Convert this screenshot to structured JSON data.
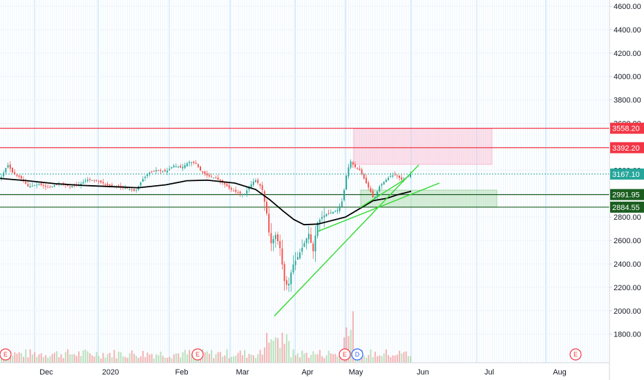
{
  "chart_data": {
    "type": "candlestick",
    "y_axis": {
      "ticks": [
        "4600.00",
        "4400.00",
        "4200.00",
        "4000.00",
        "3800.00",
        "3600.00",
        "3400.00",
        "3200.00",
        "3000.00",
        "2800.00",
        "2600.00",
        "2400.00",
        "2200.00",
        "2000.00",
        "1800.00"
      ],
      "ylim": [
        1600,
        4650
      ]
    },
    "x_axis": {
      "labels": [
        "Dec",
        "2020",
        "Feb",
        "Mar",
        "Apr",
        "May",
        "Jun",
        "Jul",
        "Aug"
      ]
    },
    "horizontal_levels": [
      {
        "value": 3558.2,
        "label": "3558.20",
        "color": "#f23645",
        "tag_color": "#f23645"
      },
      {
        "value": 3392.2,
        "label": "3392.20",
        "color": "#f23645",
        "tag_color": "#f23645"
      },
      {
        "value": 2991.95,
        "label": "2991.95",
        "color": "#1b5e20",
        "tag_color": "#1b5e20"
      },
      {
        "value": 2884.55,
        "label": "2884.55",
        "color": "#1b5e20",
        "tag_color": "#1b5e20"
      }
    ],
    "current_price": {
      "value": 3167.1,
      "label": "3167.10",
      "color": "#26a69a"
    },
    "zones": [
      {
        "kind": "resistance",
        "from": "Apr 25",
        "to": "Jun 30",
        "low": 3250,
        "high": 3555,
        "color": "#f8bbd0"
      },
      {
        "kind": "support",
        "from": "Apr 28",
        "to": "Jul 3",
        "low": 2885,
        "high": 3030,
        "color": "#a5d6a7"
      }
    ],
    "moving_average": {
      "color": "#000000",
      "points": [
        [
          0,
          3130
        ],
        [
          40,
          3110
        ],
        [
          80,
          3085
        ],
        [
          120,
          3070
        ],
        [
          160,
          3060
        ],
        [
          200,
          3050
        ],
        [
          240,
          3075
        ],
        [
          270,
          3110
        ],
        [
          300,
          3115
        ],
        [
          340,
          3090
        ],
        [
          370,
          3035
        ],
        [
          390,
          2950
        ],
        [
          410,
          2850
        ],
        [
          425,
          2780
        ],
        [
          440,
          2735
        ],
        [
          460,
          2740
        ],
        [
          480,
          2770
        ],
        [
          500,
          2800
        ],
        [
          520,
          2870
        ],
        [
          540,
          2940
        ],
        [
          560,
          2960
        ],
        [
          575,
          2990
        ],
        [
          595,
          3020
        ]
      ]
    },
    "trendlines": [
      {
        "color": "#3adb3a",
        "from": [
          397,
          1955
        ],
        "to": [
          606,
          3245
        ]
      },
      {
        "color": "#3adb3a",
        "from": [
          461,
          2680
        ],
        "to": [
          636,
          3090
        ]
      },
      {
        "color": "#3adb3a",
        "from": [
          521,
          2880
        ],
        "to": [
          588,
          3130
        ]
      }
    ],
    "events": [
      {
        "label": "E",
        "color": "#f23645",
        "x_day": "Nov 20"
      },
      {
        "label": "E",
        "color": "#f23645",
        "x_day": "Feb 5"
      },
      {
        "label": "E",
        "color": "#f23645",
        "x_day": "Apr 24"
      },
      {
        "label": "D",
        "color": "#2962ff",
        "x_day": "Apr 30"
      },
      {
        "label": "E",
        "color": "#f23645",
        "x_day": "Jul 30"
      }
    ],
    "price_path": [
      [
        0,
        3130
      ],
      [
        10,
        3250
      ],
      [
        18,
        3170
      ],
      [
        28,
        3140
      ],
      [
        40,
        3060
      ],
      [
        55,
        3080
      ],
      [
        70,
        3050
      ],
      [
        85,
        3090
      ],
      [
        100,
        3060
      ],
      [
        115,
        3080
      ],
      [
        125,
        3120
      ],
      [
        140,
        3110
      ],
      [
        155,
        3070
      ],
      [
        170,
        3060
      ],
      [
        185,
        3040
      ],
      [
        195,
        3020
      ],
      [
        205,
        3120
      ],
      [
        215,
        3180
      ],
      [
        225,
        3200
      ],
      [
        240,
        3190
      ],
      [
        250,
        3240
      ],
      [
        262,
        3220
      ],
      [
        272,
        3270
      ],
      [
        282,
        3260
      ],
      [
        290,
        3190
      ],
      [
        300,
        3150
      ],
      [
        312,
        3130
      ],
      [
        322,
        3090
      ],
      [
        332,
        3040
      ],
      [
        342,
        3010
      ],
      [
        352,
        2990
      ],
      [
        360,
        3060
      ],
      [
        368,
        3120
      ],
      [
        378,
        3050
      ],
      [
        386,
        2800
      ],
      [
        390,
        2560
      ],
      [
        398,
        2650
      ],
      [
        405,
        2520
      ],
      [
        410,
        2260
      ],
      [
        416,
        2200
      ],
      [
        422,
        2380
      ],
      [
        430,
        2460
      ],
      [
        438,
        2560
      ],
      [
        446,
        2660
      ],
      [
        452,
        2500
      ],
      [
        458,
        2750
      ],
      [
        465,
        2800
      ],
      [
        472,
        2830
      ],
      [
        480,
        2840
      ],
      [
        488,
        2860
      ],
      [
        495,
        2950
      ],
      [
        500,
        3150
      ],
      [
        506,
        3280
      ],
      [
        512,
        3230
      ],
      [
        520,
        3200
      ],
      [
        528,
        3100
      ],
      [
        535,
        3020
      ],
      [
        540,
        2950
      ],
      [
        548,
        3060
      ],
      [
        556,
        3110
      ],
      [
        564,
        3150
      ],
      [
        572,
        3160
      ],
      [
        580,
        3120
      ],
      [
        588,
        3140
      ],
      [
        593,
        3167
      ]
    ]
  }
}
